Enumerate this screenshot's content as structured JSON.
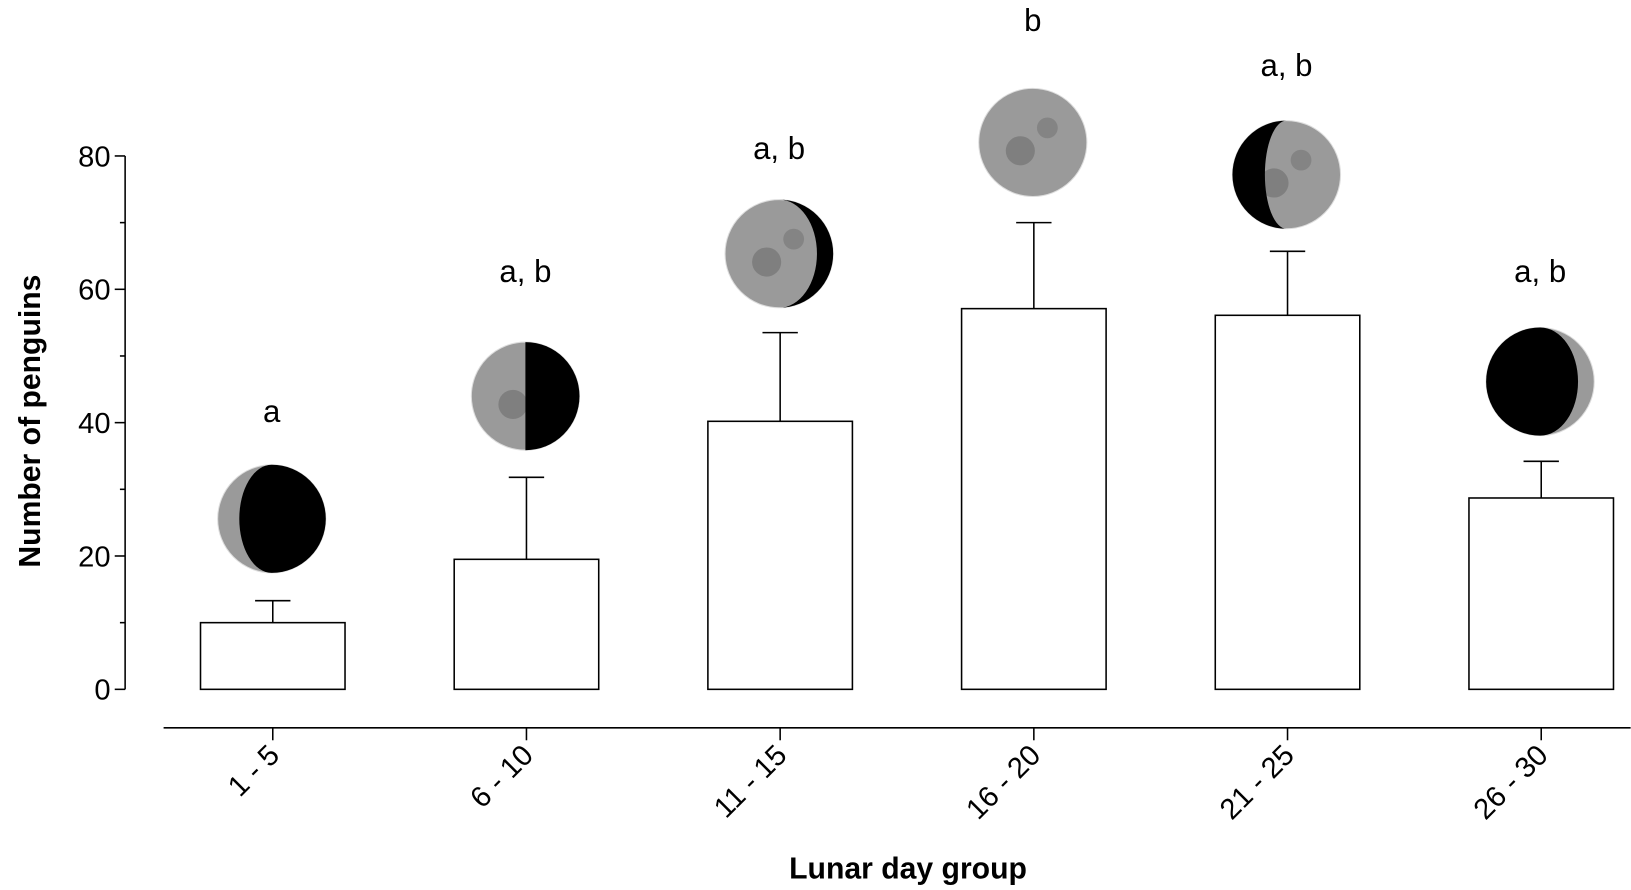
{
  "chart_data": {
    "type": "bar",
    "xlabel": "Lunar day group",
    "ylabel": "Number of penguins",
    "categories": [
      "1 - 5",
      "6 - 10",
      "11 - 15",
      "16 - 20",
      "21 - 25",
      "26 - 30"
    ],
    "values": [
      10.0,
      19.5,
      40.2,
      57.1,
      56.1,
      28.7
    ],
    "errors": [
      3.3,
      12.3,
      13.3,
      12.9,
      9.6,
      5.5
    ],
    "annotations": [
      "a",
      "a, b",
      "a, b",
      "b",
      "a, b",
      "a, b"
    ],
    "color": "#ffffff",
    "ylim": [
      0,
      80
    ],
    "yticks": [
      0,
      20,
      40,
      60,
      80
    ]
  }
}
